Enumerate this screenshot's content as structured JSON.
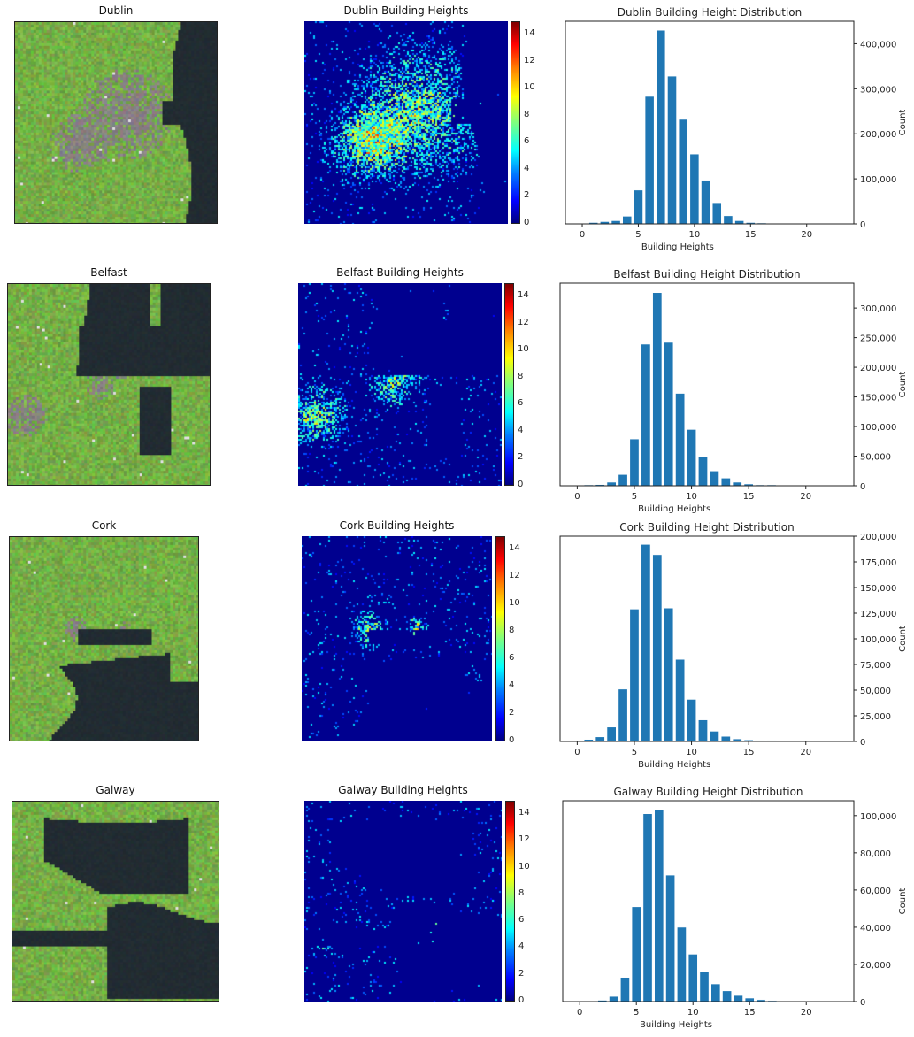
{
  "panels": [
    {
      "city": "Dublin",
      "image_title": "Dublin",
      "heights_title": "Dublin Building Heights",
      "colorbar_ticks": [
        "0",
        "2",
        "4",
        "6",
        "8",
        "10",
        "12",
        "14"
      ]
    },
    {
      "city": "Belfast",
      "image_title": "Belfast",
      "heights_title": "Belfast Building Heights",
      "colorbar_ticks": [
        "0",
        "2",
        "4",
        "6",
        "8",
        "10",
        "12",
        "14"
      ]
    },
    {
      "city": "Cork",
      "image_title": "Cork",
      "heights_title": "Cork Building Heights",
      "colorbar_ticks": [
        "0",
        "2",
        "4",
        "6",
        "8",
        "10",
        "12",
        "14"
      ]
    },
    {
      "city": "Galway",
      "image_title": "Galway",
      "heights_title": "Galway Building Heights",
      "colorbar_ticks": [
        "0",
        "2",
        "4",
        "6",
        "8",
        "10",
        "12",
        "14"
      ]
    }
  ],
  "colorbar_range": [
    0,
    15
  ],
  "chart_data": [
    {
      "type": "bar",
      "title": "Dublin Building Height Distribution",
      "xlabel": "Building Heights",
      "ylabel": "Count",
      "color": "#1f77b4",
      "x": [
        1,
        2,
        3,
        4,
        5,
        6,
        7,
        8,
        9,
        10,
        11,
        12,
        13,
        14,
        15,
        16
      ],
      "values": [
        3000,
        5000,
        7000,
        17000,
        75000,
        283000,
        430000,
        328000,
        232000,
        155000,
        97000,
        47000,
        18000,
        7000,
        3000,
        2000
      ],
      "xlim": [
        -1.5,
        24.2
      ],
      "ylim": [
        0,
        450000
      ],
      "xticks": [
        "0",
        "5",
        "10",
        "15",
        "20"
      ],
      "yticks": [
        "0",
        "100,000",
        "200,000",
        "300,000",
        "400,000"
      ],
      "ytick_values": [
        0,
        100000,
        200000,
        300000,
        400000
      ]
    },
    {
      "type": "bar",
      "title": "Belfast Building Height Distribution",
      "xlabel": "Building Heights",
      "ylabel": "Count",
      "color": "#1f77b4",
      "x": [
        1,
        2,
        3,
        4,
        5,
        6,
        7,
        8,
        9,
        10,
        11,
        12,
        13,
        14,
        15,
        16,
        17
      ],
      "values": [
        1500,
        2000,
        6000,
        19000,
        79000,
        239000,
        326000,
        242000,
        156000,
        95000,
        49000,
        25000,
        13000,
        6000,
        3000,
        1500,
        1500
      ],
      "xlim": [
        -1.5,
        24.2
      ],
      "ylim": [
        0,
        342000
      ],
      "xticks": [
        "0",
        "5",
        "10",
        "15",
        "20"
      ],
      "yticks": [
        "0",
        "50,000",
        "100,000",
        "150,000",
        "200,000",
        "250,000",
        "300,000"
      ],
      "ytick_values": [
        0,
        50000,
        100000,
        150000,
        200000,
        250000,
        300000
      ]
    },
    {
      "type": "bar",
      "title": "Cork Building Height Distribution",
      "xlabel": "Building Heights",
      "ylabel": "Count",
      "color": "#1f77b4",
      "x": [
        1,
        2,
        3,
        4,
        5,
        6,
        7,
        8,
        9,
        10,
        11,
        12,
        13,
        14,
        15,
        16,
        17
      ],
      "values": [
        2000,
        4500,
        14000,
        51000,
        129000,
        192000,
        182000,
        130000,
        80000,
        41000,
        21000,
        10000,
        5000,
        2500,
        1500,
        1000,
        1000
      ],
      "xlim": [
        -1.5,
        24.2
      ],
      "ylim": [
        0,
        200000
      ],
      "xticks": [
        "0",
        "5",
        "10",
        "15",
        "20"
      ],
      "yticks": [
        "0",
        "25,000",
        "50,000",
        "75,000",
        "100,000",
        "125,000",
        "150,000",
        "175,000",
        "200,000"
      ],
      "ytick_values": [
        0,
        25000,
        50000,
        75000,
        100000,
        125000,
        150000,
        175000,
        200000
      ]
    },
    {
      "type": "bar",
      "title": "Galway Building Height Distribution",
      "xlabel": "Building Heights",
      "ylabel": "Count",
      "color": "#1f77b4",
      "x": [
        2,
        3,
        4,
        5,
        6,
        7,
        8,
        9,
        10,
        11,
        12,
        13,
        14,
        15,
        16,
        17
      ],
      "values": [
        700,
        2800,
        13000,
        51000,
        101000,
        103000,
        68000,
        40000,
        25500,
        16000,
        9500,
        5800,
        3300,
        1900,
        1000,
        500
      ],
      "xlim": [
        -1.5,
        24.2
      ],
      "ylim": [
        0,
        108000
      ],
      "xticks": [
        "0",
        "5",
        "10",
        "15",
        "20"
      ],
      "yticks": [
        "0",
        "20,000",
        "40,000",
        "60,000",
        "80,000",
        "100,000"
      ],
      "ytick_values": [
        0,
        20000,
        40000,
        60000,
        80000,
        100000
      ]
    }
  ]
}
